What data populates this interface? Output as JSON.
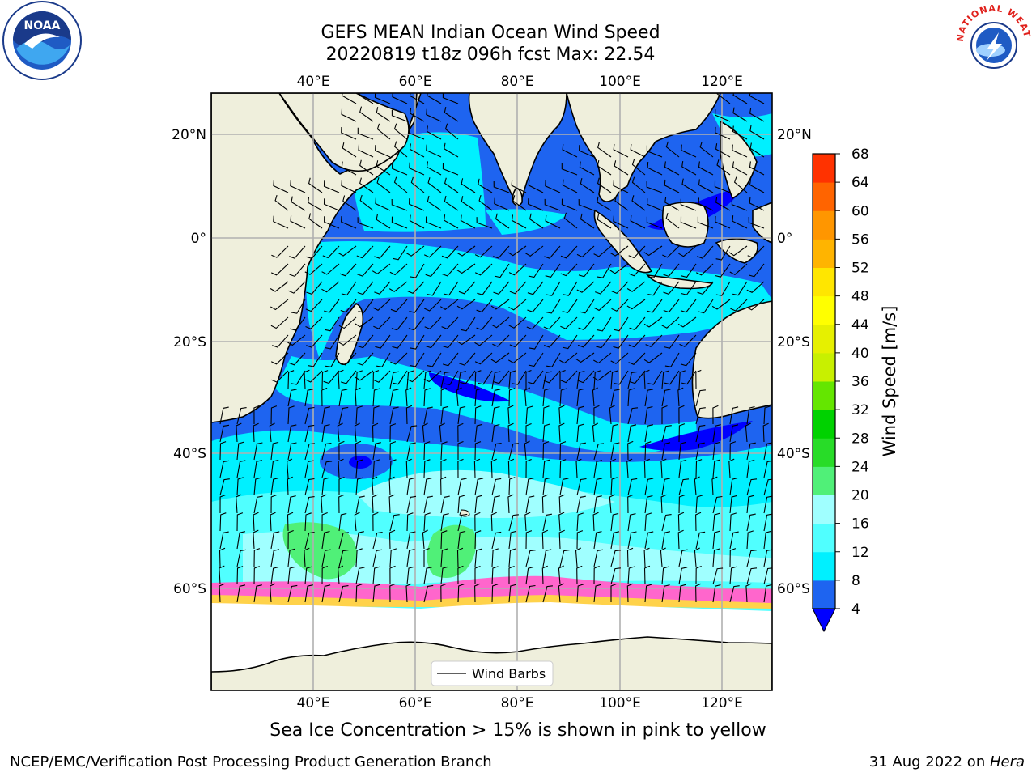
{
  "header": {
    "title_line1": "GEFS MEAN Indian Ocean Wind Speed",
    "title_line2": "20220819 t18z 096h fcst   Max: 22.54"
  },
  "map": {
    "lon_ticks": [
      "40°E",
      "60°E",
      "80°E",
      "100°E",
      "120°E"
    ],
    "lat_ticks_left": [
      "20°N",
      "0°",
      "20°S",
      "40°S",
      "60°S"
    ],
    "lat_ticks_right": [
      "20°N",
      "0°",
      "20°S",
      "40°S",
      "60°S"
    ],
    "lon_range": [
      20,
      129
    ],
    "lat_range": [
      -80,
      27
    ],
    "legend_label": "Wind Barbs",
    "colors": {
      "land": "#efefdc",
      "ice_free": "#ffffff",
      "ws_4_8": "#1e64f0",
      "ws_8_12": "#00f0ff",
      "ws_12_16": "#50ffff",
      "ws_16_20": "#a0ffff",
      "ws_20_24": "#50f078",
      "sea_ice": "#ff66cc"
    }
  },
  "colorbar": {
    "label": "Wind Speed [m/s]",
    "ticks": [
      "4",
      "8",
      "12",
      "16",
      "20",
      "24",
      "28",
      "32",
      "36",
      "40",
      "44",
      "48",
      "52",
      "56",
      "60",
      "64",
      "68"
    ],
    "colors": [
      "#1e64f0",
      "#00f0ff",
      "#50ffff",
      "#a0ffff",
      "#50f078",
      "#28dc28",
      "#00d200",
      "#64e600",
      "#c8f000",
      "#e6f000",
      "#ffff00",
      "#ffe600",
      "#ffb400",
      "#ff9600",
      "#ff6400",
      "#ff3200",
      "#ff0000"
    ],
    "under_color": "#0000ff"
  },
  "caption": "Sea Ice Concentration > 15% is shown in pink to yellow",
  "footer": {
    "left": "NCEP/EMC/Verification Post Processing Product Generation Branch",
    "right_date": "31 Aug 2022 on ",
    "right_host": "Hera"
  },
  "logos": {
    "noaa_text": "NOAA",
    "nws_text": "NATIONAL WEATHER SERVICE"
  }
}
